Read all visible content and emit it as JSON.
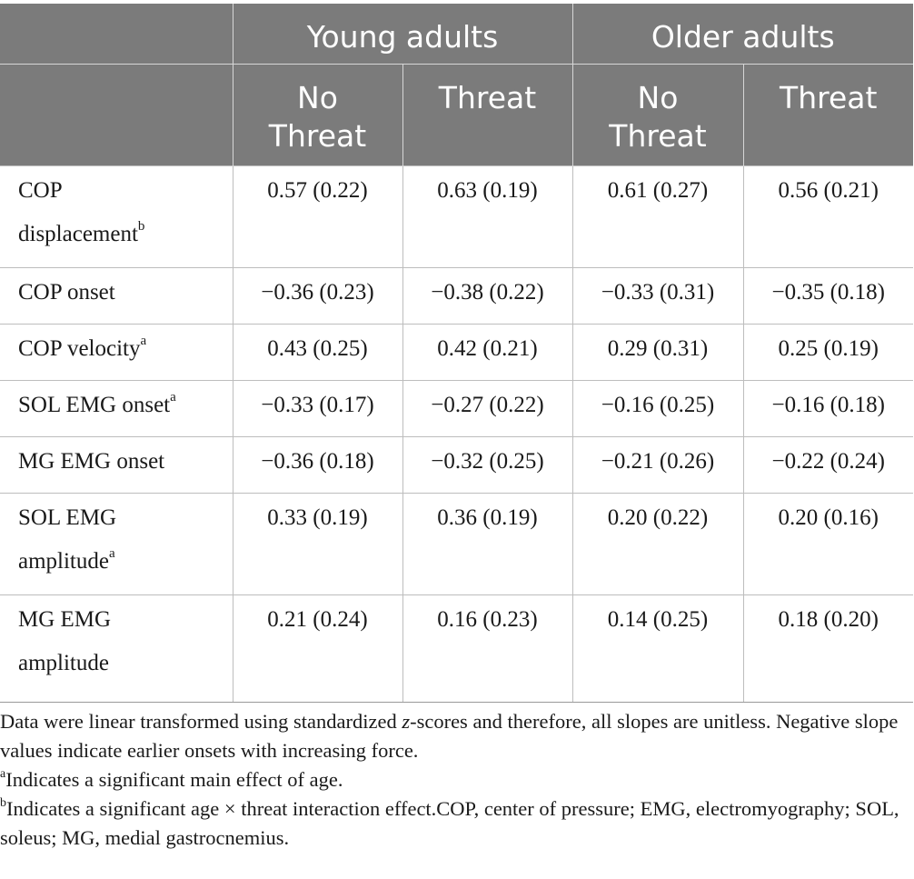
{
  "header": {
    "groups": [
      "Young adults",
      "Older adults"
    ],
    "subheads": [
      "No\nThreat",
      "Threat",
      "No\nThreat",
      "Threat"
    ]
  },
  "rows": [
    {
      "label": "COP\ndisplacement",
      "sup": "b",
      "values": [
        "0.57 (0.22)",
        "0.63 (0.19)",
        "0.61 (0.27)",
        "0.56 (0.21)"
      ]
    },
    {
      "label": "COP onset",
      "sup": "",
      "values": [
        "−0.36 (0.23)",
        "−0.38 (0.22)",
        "−0.33 (0.31)",
        "−0.35 (0.18)"
      ]
    },
    {
      "label": "COP velocity",
      "sup": "a",
      "values": [
        "0.43 (0.25)",
        "0.42 (0.21)",
        "0.29 (0.31)",
        "0.25 (0.19)"
      ]
    },
    {
      "label": "SOL EMG onset",
      "sup": "a",
      "values": [
        "−0.33 (0.17)",
        "−0.27 (0.22)",
        "−0.16 (0.25)",
        "−0.16 (0.18)"
      ]
    },
    {
      "label": "MG EMG onset",
      "sup": "",
      "values": [
        "−0.36 (0.18)",
        "−0.32 (0.25)",
        "−0.21 (0.26)",
        "−0.22 (0.24)"
      ]
    },
    {
      "label": "SOL EMG\namplitude",
      "sup": "a",
      "values": [
        "0.33 (0.19)",
        "0.36 (0.19)",
        "0.20 (0.22)",
        "0.20 (0.16)"
      ]
    },
    {
      "label": "MG EMG\namplitude",
      "sup": "",
      "values": [
        "0.21 (0.24)",
        "0.16 (0.23)",
        "0.14 (0.25)",
        "0.18 (0.20)"
      ]
    }
  ],
  "footnotes": {
    "note_1": "Data were linear transformed using standardized ",
    "note_1_italic": "z",
    "note_1_rest": "-scores and therefore, all slopes are unitless. Negative slope values indicate earlier onsets with increasing force.",
    "note_a_mark": "a",
    "note_a": "Indicates a significant main effect of age.",
    "note_b_mark": "b",
    "note_b": "Indicates a significant age × threat interaction effect.COP, center of pressure; EMG, electromyography; SOL, soleus; MG, medial gastrocnemius."
  }
}
